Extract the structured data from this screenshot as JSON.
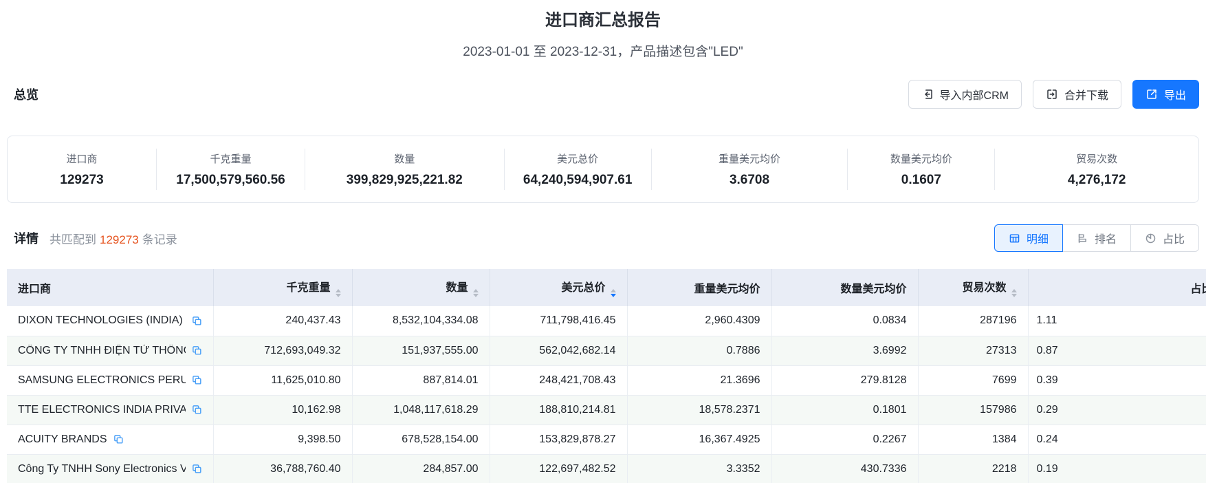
{
  "header": {
    "title": "进口商汇总报告",
    "subtitle": "2023-01-01 至 2023-12-31，产品描述包含\"LED\""
  },
  "overview": {
    "section_title": "总览",
    "buttons": [
      {
        "label": "导入内部CRM",
        "icon": "import-icon"
      },
      {
        "label": "合并下载",
        "icon": "merge-download-icon"
      },
      {
        "label": "导出",
        "icon": "export-icon",
        "primary": true
      }
    ],
    "stats": [
      {
        "label": "进口商",
        "value": "129273"
      },
      {
        "label": "千克重量",
        "value": "17,500,579,560.56"
      },
      {
        "label": "数量",
        "value": "399,829,925,221.82"
      },
      {
        "label": "美元总价",
        "value": "64,240,594,907.61"
      },
      {
        "label": "重量美元均价",
        "value": "3.6708"
      },
      {
        "label": "数量美元均价",
        "value": "0.1607"
      },
      {
        "label": "贸易次数",
        "value": "4,276,172"
      }
    ]
  },
  "details": {
    "section_title": "详情",
    "match_prefix": "共匹配到",
    "match_count": "129273",
    "match_suffix": "条记录",
    "tabs": [
      {
        "label": "明细",
        "icon": "table-icon",
        "active": true
      },
      {
        "label": "排名",
        "icon": "ranking-icon",
        "active": false
      },
      {
        "label": "占比",
        "icon": "pie-icon",
        "active": false
      }
    ]
  },
  "table": {
    "columns": [
      {
        "label": "进口商",
        "sortable": false
      },
      {
        "label": "千克重量",
        "sortable": true,
        "sort": "none"
      },
      {
        "label": "数量",
        "sortable": true,
        "sort": "none"
      },
      {
        "label": "美元总价",
        "sortable": true,
        "sort": "desc"
      },
      {
        "label": "重量美元均价",
        "sortable": false
      },
      {
        "label": "数量美元均价",
        "sortable": false
      },
      {
        "label": "贸易次数",
        "sortable": true,
        "sort": "none"
      },
      {
        "label": "占比",
        "sortable": false
      }
    ],
    "rows": [
      {
        "importer": "DIXON TECHNOLOGIES (INDIA) ...",
        "kg": "240,437.43",
        "qty": "8,532,104,334.08",
        "usd": "711,798,416.45",
        "usd_per_kg": "2,960.4309",
        "usd_per_qty": "0.0834",
        "trades": "287196",
        "share": "1.11"
      },
      {
        "importer": "CÔNG TY TNHH ĐIỆN TỬ THÔNG...",
        "kg": "712,693,049.32",
        "qty": "151,937,555.00",
        "usd": "562,042,682.14",
        "usd_per_kg": "0.7886",
        "usd_per_qty": "3.6992",
        "trades": "27313",
        "share": "0.87"
      },
      {
        "importer": "SAMSUNG ELECTRONICS PERU S...",
        "kg": "11,625,010.80",
        "qty": "887,814.01",
        "usd": "248,421,708.43",
        "usd_per_kg": "21.3696",
        "usd_per_qty": "279.8128",
        "trades": "7699",
        "share": "0.39"
      },
      {
        "importer": "TTE ELECTRONICS INDIA PRIVAT...",
        "kg": "10,162.98",
        "qty": "1,048,117,618.29",
        "usd": "188,810,214.81",
        "usd_per_kg": "18,578.2371",
        "usd_per_qty": "0.1801",
        "trades": "157986",
        "share": "0.29"
      },
      {
        "importer": "ACUITY BRANDS",
        "kg": "9,398.50",
        "qty": "678,528,154.00",
        "usd": "153,829,878.27",
        "usd_per_kg": "16,367.4925",
        "usd_per_qty": "0.2267",
        "trades": "1384",
        "share": "0.24"
      },
      {
        "importer": "Công Ty TNHH Sony Electronics V...",
        "kg": "36,788,760.40",
        "qty": "284,857.00",
        "usd": "122,697,482.52",
        "usd_per_kg": "3.3352",
        "usd_per_qty": "430.7336",
        "trades": "2218",
        "share": "0.19"
      }
    ]
  },
  "colors": {
    "accent_blue": "#1677ff",
    "count_orange": "#e6521d",
    "table_header_bg": "#e9edf6",
    "alt_row_bg": "#f5f9f6"
  }
}
